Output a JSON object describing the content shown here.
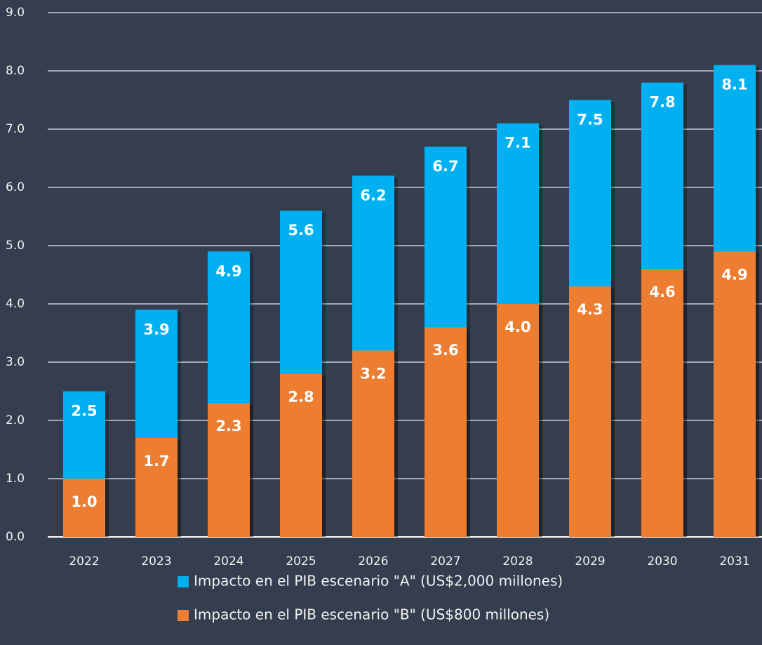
{
  "chart_data": {
    "type": "bar",
    "overlap": true,
    "categories": [
      "2022",
      "2023",
      "2024",
      "2025",
      "2026",
      "2027",
      "2028",
      "2029",
      "2030",
      "2031"
    ],
    "series": [
      {
        "name": "Impacto en el PIB escenario \"A\" (US$2,000 millones)",
        "color": "#00b0f0",
        "values": [
          2.5,
          3.9,
          4.9,
          5.6,
          6.2,
          6.7,
          7.1,
          7.5,
          7.8,
          8.1
        ],
        "value_labels": [
          "2.5",
          "3.9",
          "4.9",
          "5.6",
          "6.2",
          "6.7",
          "7.1",
          "7.5",
          "7.8",
          "8.1"
        ]
      },
      {
        "name": "Impacto en el PIB escenario \"B\" (US$800 millones)",
        "color": "#ed7d31",
        "values": [
          1.0,
          1.7,
          2.3,
          2.8,
          3.2,
          3.6,
          4.0,
          4.3,
          4.6,
          4.9
        ],
        "value_labels": [
          "1.0",
          "1.7",
          "2.3",
          "2.8",
          "3.2",
          "3.6",
          "4.0",
          "4.3",
          "4.6",
          "4.9"
        ]
      }
    ],
    "ylim": [
      0,
      9
    ],
    "yticks": [
      {
        "value": 0,
        "label": "0.0"
      },
      {
        "value": 1,
        "label": "1.0"
      },
      {
        "value": 2,
        "label": "2.0"
      },
      {
        "value": 3,
        "label": "3.0"
      },
      {
        "value": 4,
        "label": "4.0"
      },
      {
        "value": 5,
        "label": "5.0"
      },
      {
        "value": 6,
        "label": "6.0"
      },
      {
        "value": 7,
        "label": "7.0"
      },
      {
        "value": 8,
        "label": "8.0"
      },
      {
        "value": 9,
        "label": "9.0"
      }
    ],
    "grid": true,
    "legend": "bottom"
  }
}
